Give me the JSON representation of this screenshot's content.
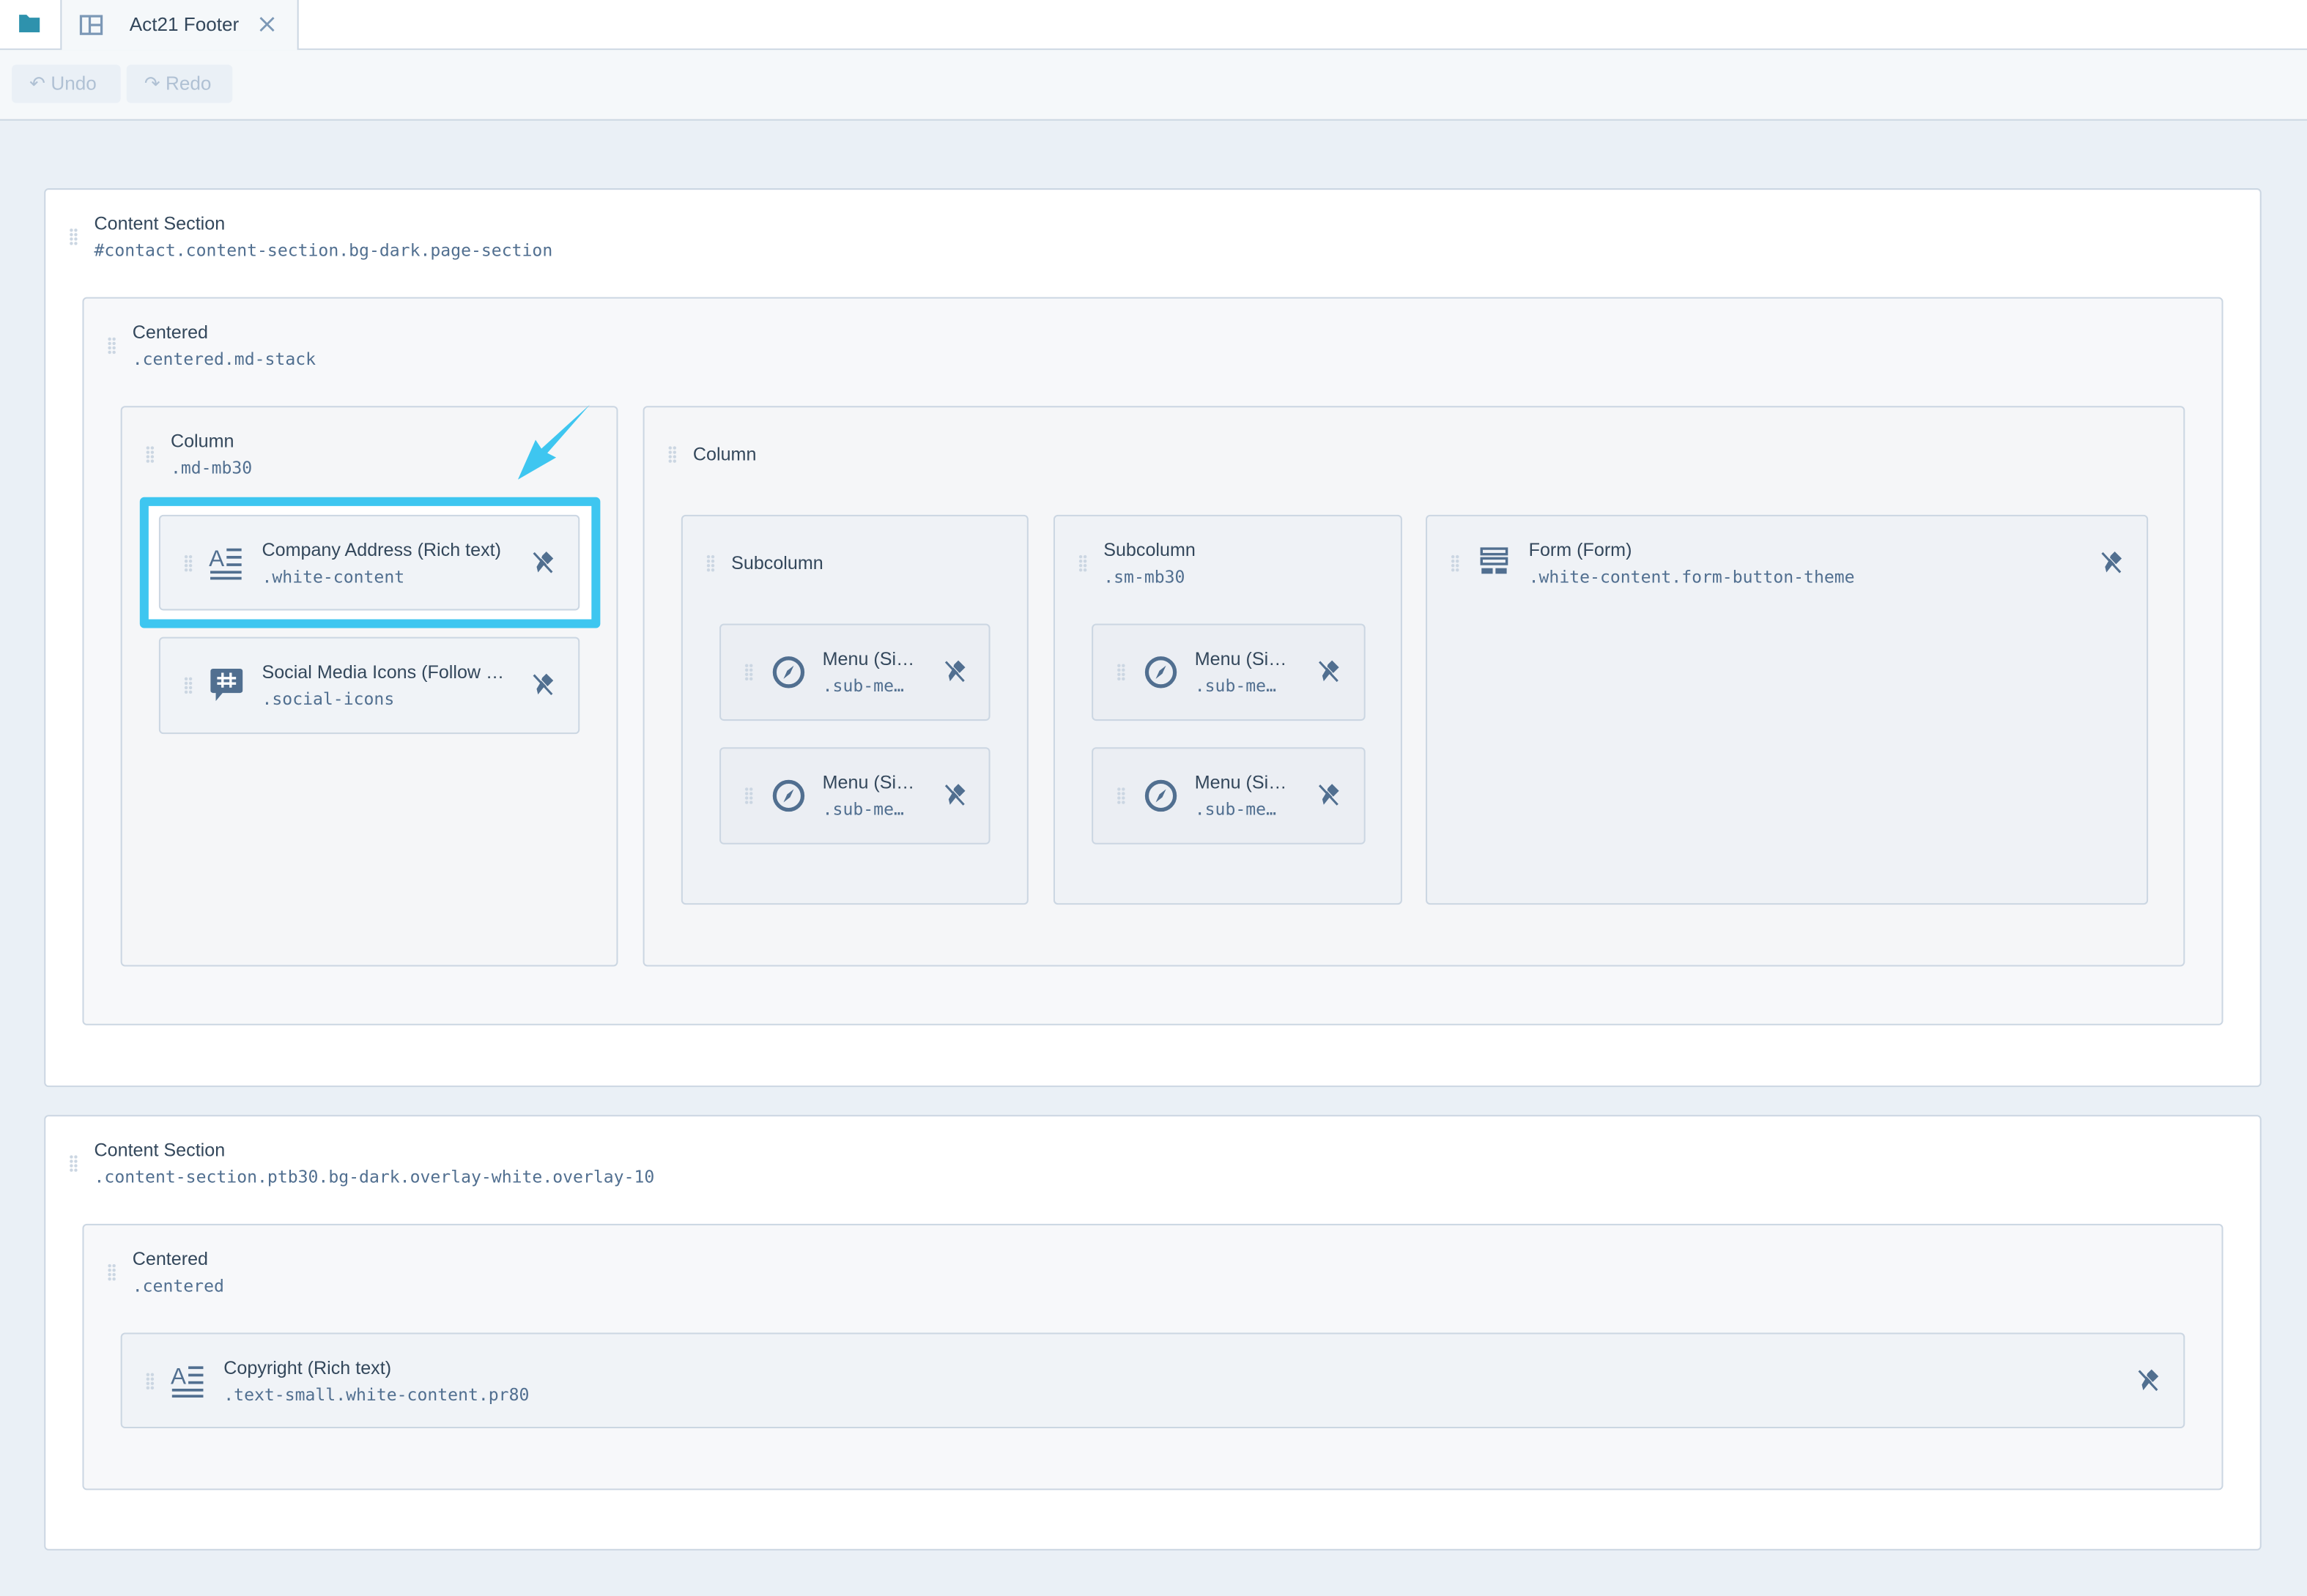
{
  "tabs": {
    "active_title": "Act21 Footer",
    "folder_icon": "folder-icon",
    "layout_icon": "layout-icon",
    "close_icon": "close-icon"
  },
  "toolbar": {
    "undo_label": "Undo",
    "redo_label": "Redo"
  },
  "colors": {
    "accent_highlight": "#3ec6f0",
    "text": "#33475b",
    "code": "#516f90",
    "canvas": "#eaf0f6"
  },
  "sections": [
    {
      "label": "Content Section",
      "class": "#contact.content-section.bg-dark.page-section",
      "centered": {
        "label": "Centered",
        "class": ".centered.md-stack",
        "column1": {
          "label": "Column",
          "class": ".md-mb30",
          "modules": [
            {
              "name": "Company Address (Rich text)",
              "class": ".white-content",
              "icon": "rich-text-icon",
              "highlighted": true
            },
            {
              "name": "Social Media Icons (Follow …",
              "class": ".social-icons",
              "icon": "hashtag-bubble-icon"
            }
          ]
        },
        "column2": {
          "label": "Column",
          "subcolumns": [
            {
              "label": "Subcolumn",
              "class": "",
              "modules": [
                {
                  "name": "Menu (Si…",
                  "class": ".sub-me…"
                },
                {
                  "name": "Menu (Si…",
                  "class": ".sub-me…"
                }
              ]
            },
            {
              "label": "Subcolumn",
              "class": ".sm-mb30",
              "modules": [
                {
                  "name": "Menu (Si…",
                  "class": ".sub-me…"
                },
                {
                  "name": "Menu (Si…",
                  "class": ".sub-me…"
                }
              ]
            }
          ],
          "form": {
            "name": "Form (Form)",
            "class": ".white-content.form-button-theme",
            "icon": "form-icon"
          }
        }
      }
    },
    {
      "label": "Content Section",
      "class": ".content-section.ptb30.bg-dark.overlay-white.overlay-10",
      "centered": {
        "label": "Centered",
        "class": ".centered",
        "modules": [
          {
            "name": "Copyright (Rich text)",
            "class": ".text-small.white-content.pr80",
            "icon": "rich-text-icon"
          }
        ]
      }
    }
  ]
}
